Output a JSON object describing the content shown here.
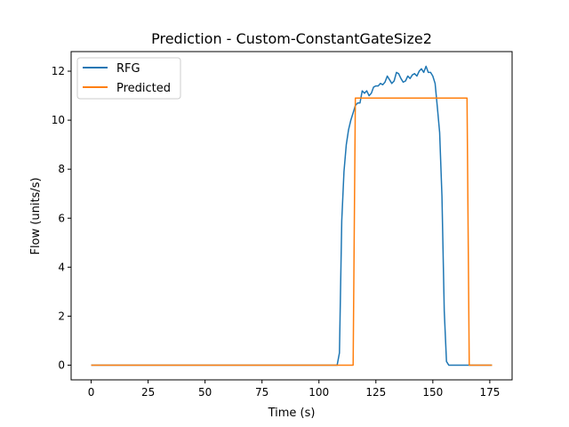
{
  "chart_data": {
    "type": "line",
    "title": "Prediction - Custom-ConstantGateSize2",
    "xlabel": "Time (s)",
    "ylabel": "Flow (units/s)",
    "xlim": [
      -8.8,
      184.8
    ],
    "ylim": [
      -0.6,
      12.8
    ],
    "xticks": [
      0,
      25,
      50,
      75,
      100,
      125,
      150,
      175
    ],
    "yticks": [
      0,
      2,
      4,
      6,
      8,
      10,
      12
    ],
    "grid": false,
    "legend": "top-left",
    "series": [
      {
        "name": "RFG",
        "color": "#1f77b4",
        "x": [
          0,
          108,
          109,
          110,
          111,
          112,
          113,
          114,
          115,
          116,
          117,
          118,
          119,
          120,
          121,
          122,
          123,
          124,
          125,
          126,
          127,
          128,
          129,
          130,
          131,
          132,
          133,
          134,
          135,
          136,
          137,
          138,
          139,
          140,
          141,
          142,
          143,
          144,
          145,
          146,
          147,
          148,
          149,
          150,
          151,
          152,
          153,
          154,
          155,
          156,
          157,
          158,
          159,
          160,
          161,
          162,
          163,
          164,
          165,
          176
        ],
        "y": [
          0,
          0,
          0.5,
          5.9,
          7.9,
          9.0,
          9.6,
          10.0,
          10.3,
          10.6,
          10.7,
          10.7,
          11.2,
          11.1,
          11.2,
          11.0,
          11.1,
          11.35,
          11.4,
          11.4,
          11.5,
          11.45,
          11.55,
          11.8,
          11.65,
          11.5,
          11.6,
          11.95,
          11.9,
          11.7,
          11.55,
          11.6,
          11.8,
          11.7,
          11.85,
          11.9,
          11.8,
          12.0,
          12.1,
          11.95,
          12.2,
          11.95,
          11.95,
          11.8,
          11.5,
          10.5,
          9.5,
          6.9,
          2.2,
          0.15,
          0,
          0,
          0,
          0,
          0,
          0,
          0,
          0,
          0,
          0
        ]
      },
      {
        "name": "Predicted",
        "color": "#ff7f0e",
        "x": [
          0,
          115,
          116,
          117,
          165,
          166,
          176
        ],
        "y": [
          0,
          0,
          10.9,
          10.9,
          10.9,
          0,
          0
        ]
      }
    ]
  }
}
